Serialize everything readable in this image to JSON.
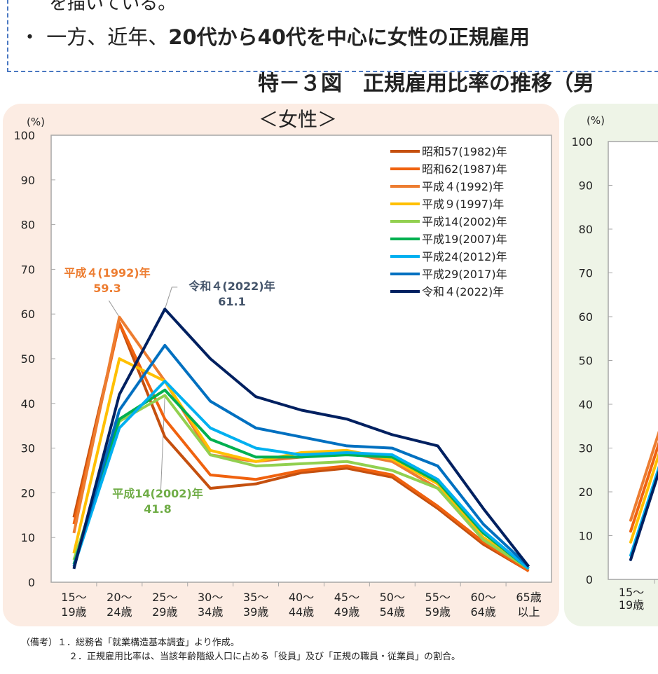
{
  "document": {
    "text_line_1": "を描いている。",
    "text_line_2_prefix": "・ 一方、近年、",
    "text_line_2_bold": "20代から40代を中心に女性の正規雇用",
    "figure_title": "特－３図　正規雇用比率の推移（男",
    "notes": [
      "（備考）１．総務省「就業構造基本調査」より作成。",
      "２．正規雇用比率は、当該年齢階級人口に占める「役員」及び「正規の職員・従業員」の割合。"
    ]
  },
  "chart_data": [
    {
      "type": "line",
      "title": "＜女性＞",
      "ylabel": "(%)",
      "ylim": [
        0,
        100
      ],
      "yticks": [
        0,
        10,
        20,
        30,
        40,
        50,
        60,
        70,
        80,
        90,
        100
      ],
      "categories": [
        "15～\n19歳",
        "20～\n24歳",
        "25～\n29歳",
        "30～\n34歳",
        "35～\n39歳",
        "40～\n44歳",
        "45～\n49歳",
        "50～\n54歳",
        "55～\n59歳",
        "60～\n64歳",
        "65歳\n以上"
      ],
      "legend_position": "top-right",
      "grid": false,
      "series": [
        {
          "name": "昭和57(1982)年",
          "color": "#c5500f",
          "values": [
            14.5,
            58.0,
            32.5,
            21.0,
            22.0,
            24.5,
            25.5,
            23.5,
            16.5,
            8.5,
            2.5
          ]
        },
        {
          "name": "昭和62(1987)年",
          "color": "#f0620f",
          "values": [
            13.0,
            58.0,
            36.5,
            24.0,
            23.0,
            25.0,
            26.0,
            24.0,
            17.0,
            9.0,
            2.5
          ]
        },
        {
          "name": "平成４(1992)年",
          "color": "#ed7d31",
          "values": [
            11.0,
            59.3,
            45.0,
            28.5,
            27.0,
            28.0,
            29.0,
            27.0,
            21.0,
            10.0,
            3.0
          ]
        },
        {
          "name": "平成９(1997)年",
          "color": "#ffc000",
          "values": [
            6.5,
            50.0,
            45.0,
            29.5,
            27.0,
            29.0,
            29.5,
            27.5,
            22.0,
            10.0,
            3.0
          ]
        },
        {
          "name": "平成14(2002)年",
          "color": "#92d050",
          "values": [
            5.0,
            36.0,
            41.8,
            28.5,
            26.0,
            26.5,
            27.0,
            25.0,
            21.0,
            9.5,
            3.0
          ]
        },
        {
          "name": "平成19(2007)年",
          "color": "#00b050",
          "values": [
            4.0,
            36.5,
            43.0,
            32.0,
            28.0,
            28.0,
            28.5,
            28.0,
            22.5,
            11.0,
            3.0
          ]
        },
        {
          "name": "平成24(2012)年",
          "color": "#00b0f0",
          "values": [
            3.5,
            34.5,
            45.0,
            34.5,
            30.0,
            28.5,
            29.0,
            28.5,
            23.0,
            11.5,
            3.0
          ]
        },
        {
          "name": "平成29(2017)年",
          "color": "#0070c0",
          "values": [
            3.5,
            38.5,
            53.0,
            40.5,
            34.5,
            32.5,
            30.5,
            30.0,
            26.0,
            13.0,
            3.5
          ]
        },
        {
          "name": "令和４(2022)年",
          "color": "#002060",
          "values": [
            3.0,
            42.0,
            61.1,
            50.0,
            41.5,
            38.5,
            36.5,
            33.0,
            30.5,
            16.5,
            3.5
          ]
        }
      ],
      "annotations": [
        {
          "label": "平成４(1992)年",
          "value": "59.3",
          "color": "#ed7d31",
          "series": 2,
          "index": 1
        },
        {
          "label": "令和４(2022)年",
          "value": "61.1",
          "color": "#44546a",
          "series": 8,
          "index": 2
        },
        {
          "label": "平成14(2002)年",
          "value": "41.8",
          "color": "#70ad47",
          "series": 4,
          "index": 2
        }
      ]
    },
    {
      "type": "line",
      "ylabel": "(%)",
      "ylim": [
        0,
        100
      ],
      "yticks": [
        0,
        10,
        20,
        30,
        40,
        50,
        60,
        70,
        80,
        90,
        100
      ],
      "categories": [
        "15～\n19歳"
      ],
      "series_first_values": [
        {
          "color": "#ed7d31",
          "value": 13.5
        },
        {
          "color": "#f0620f",
          "value": 11.0
        },
        {
          "color": "#ffc000",
          "value": 8.5
        },
        {
          "color": "#00b0f0",
          "value": 5.5
        },
        {
          "color": "#002060",
          "value": 4.5
        }
      ]
    }
  ]
}
